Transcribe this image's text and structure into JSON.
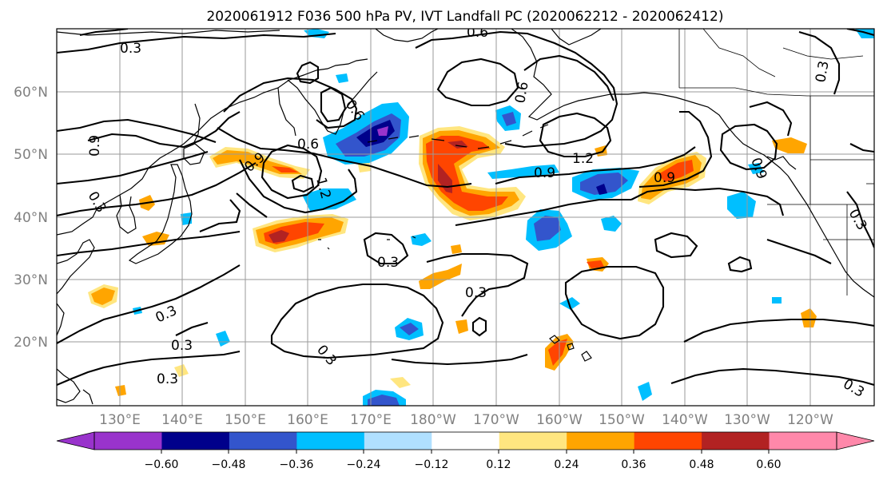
{
  "title": "2020061912 F036 500 hPa PV, IVT Landfall PC (2020062212 - 2020062412)",
  "lat_labels": [
    "60°N",
    "50°N",
    "40°N",
    "30°N",
    "20°N"
  ],
  "lon_labels": [
    "130°E",
    "140°E",
    "150°E",
    "160°E",
    "170°E",
    "180°W",
    "170°W",
    "160°W",
    "150°W",
    "140°W",
    "130°W",
    "120°W"
  ],
  "colorbar": {
    "colors": [
      "#9933cc",
      "#00008b",
      "#3355cc",
      "#00bfff",
      "#b0e0ff",
      "#ffffff",
      "#ffe680",
      "#ffa500",
      "#ff4500",
      "#b22222",
      "#ff88aa"
    ],
    "tick_labels": [
      "−0.60",
      "−0.48",
      "−0.36",
      "−0.24",
      "−0.12",
      "0.12",
      "0.24",
      "0.36",
      "0.48",
      "0.60"
    ]
  },
  "contour_labels": [
    "0.3",
    "0.6",
    "0.9",
    "1.2",
    "0.3",
    "0.6",
    "0.9",
    "0.6",
    "0.3",
    "0.3",
    "0.3",
    "1.2",
    "0.9",
    "0.9",
    "0.6",
    "0.9",
    "0.3",
    "0.3",
    "0.3",
    "0.3",
    "0.3",
    "0.3"
  ]
}
